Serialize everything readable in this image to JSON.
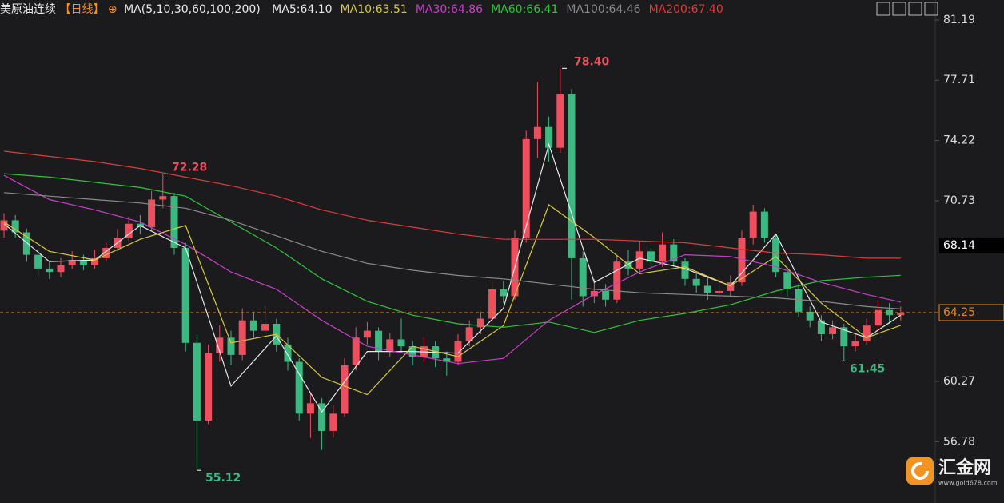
{
  "chart_data": {
    "type": "candlestick",
    "title": "美原油连续",
    "period": "【日线】",
    "indicator": "MA(5,10,30,60,100,200)",
    "ylim": [
      53.23,
      82.35
    ],
    "yticks": [
      {
        "value": 81.19,
        "label": "81.19"
      },
      {
        "value": 77.71,
        "label": "77.71"
      },
      {
        "value": 74.22,
        "label": "74.22"
      },
      {
        "value": 70.73,
        "label": "70.73"
      },
      {
        "value": 60.27,
        "label": "60.27"
      },
      {
        "value": 56.78,
        "label": "56.78"
      }
    ],
    "up_color": "#ee4f5e",
    "down_color": "#3cb981",
    "candles": [
      [
        69.0,
        70.0,
        68.6,
        69.6
      ],
      [
        69.6,
        69.9,
        68.6,
        68.9
      ],
      [
        68.9,
        69.1,
        67.2,
        67.6
      ],
      [
        67.6,
        68.0,
        66.3,
        66.8
      ],
      [
        66.8,
        67.2,
        66.2,
        66.6
      ],
      [
        66.6,
        67.4,
        66.3,
        67.0
      ],
      [
        67.0,
        67.8,
        66.8,
        67.3
      ],
      [
        67.3,
        67.6,
        66.7,
        67.0
      ],
      [
        67.0,
        67.9,
        66.8,
        67.4
      ],
      [
        67.4,
        68.3,
        67.2,
        68.0
      ],
      [
        68.0,
        69.1,
        67.8,
        68.6
      ],
      [
        68.6,
        69.8,
        68.3,
        69.4
      ],
      [
        69.4,
        69.9,
        68.8,
        69.2
      ],
      [
        69.2,
        71.3,
        69.0,
        70.8
      ],
      [
        70.8,
        72.28,
        70.3,
        71.0
      ],
      [
        71.0,
        71.2,
        67.6,
        68.0
      ],
      [
        68.0,
        68.3,
        62.0,
        62.5
      ],
      [
        62.5,
        63.0,
        55.12,
        58.0
      ],
      [
        58.0,
        62.4,
        57.8,
        61.9
      ],
      [
        61.9,
        63.5,
        61.4,
        62.8
      ],
      [
        62.8,
        63.2,
        61.2,
        61.8
      ],
      [
        61.8,
        64.5,
        61.5,
        63.8
      ],
      [
        63.8,
        64.3,
        62.8,
        63.2
      ],
      [
        63.2,
        64.6,
        62.9,
        63.6
      ],
      [
        63.6,
        63.9,
        62.0,
        62.4
      ],
      [
        62.4,
        62.8,
        60.9,
        61.4
      ],
      [
        61.4,
        61.6,
        58.0,
        58.4
      ],
      [
        58.4,
        59.6,
        57.0,
        59.0
      ],
      [
        59.0,
        59.3,
        56.3,
        57.4
      ],
      [
        57.4,
        58.9,
        57.0,
        58.4
      ],
      [
        58.4,
        61.6,
        58.2,
        61.2
      ],
      [
        61.2,
        63.4,
        60.9,
        62.8
      ],
      [
        62.8,
        63.7,
        62.4,
        63.2
      ],
      [
        63.2,
        63.4,
        61.5,
        62.0
      ],
      [
        62.0,
        63.1,
        61.7,
        62.7
      ],
      [
        62.7,
        63.9,
        61.9,
        62.3
      ],
      [
        62.3,
        62.6,
        61.2,
        61.7
      ],
      [
        61.7,
        62.8,
        61.4,
        62.3
      ],
      [
        62.3,
        62.6,
        61.1,
        61.6
      ],
      [
        61.6,
        62.0,
        60.6,
        61.4
      ],
      [
        61.4,
        63.0,
        61.2,
        62.6
      ],
      [
        62.6,
        63.8,
        62.3,
        63.4
      ],
      [
        63.4,
        64.3,
        63.0,
        63.9
      ],
      [
        63.9,
        66.0,
        63.6,
        65.6
      ],
      [
        65.6,
        66.1,
        64.8,
        65.2
      ],
      [
        65.2,
        69.0,
        65.0,
        68.6
      ],
      [
        68.6,
        74.8,
        68.3,
        74.3
      ],
      [
        74.3,
        77.6,
        73.2,
        75.0
      ],
      [
        75.0,
        75.6,
        73.0,
        73.8
      ],
      [
        73.8,
        78.4,
        73.5,
        76.9
      ],
      [
        76.9,
        77.2,
        65.0,
        67.4
      ],
      [
        67.4,
        67.8,
        64.6,
        65.2
      ],
      [
        65.2,
        66.2,
        64.8,
        65.5
      ],
      [
        65.5,
        65.9,
        64.6,
        65.0
      ],
      [
        65.0,
        67.6,
        64.8,
        67.2
      ],
      [
        67.2,
        67.9,
        66.4,
        66.8
      ],
      [
        66.8,
        68.4,
        66.5,
        67.8
      ],
      [
        67.8,
        68.0,
        66.8,
        67.2
      ],
      [
        67.2,
        68.9,
        66.9,
        68.2
      ],
      [
        68.2,
        68.5,
        66.9,
        67.2
      ],
      [
        67.2,
        67.4,
        65.8,
        66.2
      ],
      [
        66.2,
        66.6,
        65.4,
        65.8
      ],
      [
        65.8,
        66.3,
        65.0,
        65.4
      ],
      [
        65.4,
        66.2,
        65.0,
        65.5
      ],
      [
        65.5,
        66.4,
        65.2,
        66.0
      ],
      [
        66.0,
        69.0,
        65.8,
        68.6
      ],
      [
        68.6,
        70.5,
        68.2,
        70.1
      ],
      [
        70.1,
        70.3,
        68.3,
        68.6
      ],
      [
        68.6,
        68.8,
        66.3,
        66.6
      ],
      [
        66.6,
        66.9,
        65.2,
        65.6
      ],
      [
        65.6,
        65.9,
        64.0,
        64.3
      ],
      [
        64.3,
        64.6,
        63.4,
        63.8
      ],
      [
        63.8,
        64.1,
        62.6,
        63.0
      ],
      [
        63.0,
        63.8,
        62.7,
        63.4
      ],
      [
        63.4,
        63.6,
        61.45,
        62.3
      ],
      [
        62.3,
        63.0,
        62.0,
        62.6
      ],
      [
        62.6,
        63.9,
        62.4,
        63.5
      ],
      [
        63.5,
        65.0,
        63.2,
        64.4
      ],
      [
        64.4,
        64.8,
        63.6,
        64.1
      ],
      [
        64.1,
        64.6,
        63.8,
        64.25
      ]
    ],
    "ma_x": [
      0,
      4,
      8,
      12,
      16,
      20,
      24,
      28,
      32,
      36,
      40,
      44,
      48,
      52,
      56,
      60,
      64,
      68,
      72,
      76,
      79
    ],
    "series": [
      {
        "name": "MA5:64.10",
        "color": "#e8e8e8",
        "values": [
          69.4,
          67.2,
          67.3,
          69.3,
          68.0,
          60.0,
          62.9,
          58.5,
          62.0,
          62.0,
          61.9,
          64.5,
          74.0,
          66.0,
          67.4,
          66.8,
          65.8,
          68.8,
          63.7,
          62.8,
          64.1
        ]
      },
      {
        "name": "MA10:63.51",
        "color": "#d8c93a",
        "values": [
          69.5,
          67.8,
          67.3,
          68.5,
          69.3,
          62.5,
          63.0,
          60.5,
          59.5,
          62.3,
          61.7,
          63.5,
          70.5,
          68.6,
          66.5,
          66.9,
          65.8,
          67.5,
          64.8,
          62.8,
          63.51
        ]
      },
      {
        "name": "MA30:64.86",
        "color": "#c93fc9",
        "values": [
          72.2,
          70.8,
          70.2,
          69.5,
          68.2,
          66.6,
          65.6,
          63.8,
          62.3,
          61.8,
          61.3,
          61.6,
          63.8,
          65.3,
          66.6,
          67.6,
          67.5,
          66.9,
          66.0,
          65.3,
          64.86
        ]
      },
      {
        "name": "MA60:66.41",
        "color": "#2ec43a",
        "values": [
          72.3,
          72.1,
          71.8,
          71.5,
          71.0,
          69.5,
          68.0,
          66.2,
          64.9,
          64.1,
          63.6,
          63.4,
          63.7,
          63.1,
          63.8,
          64.2,
          64.7,
          65.5,
          66.1,
          66.3,
          66.41
        ]
      },
      {
        "name": "MA100:64.46",
        "color": "#8a8a8a",
        "values": [
          71.2,
          71.0,
          70.8,
          70.6,
          70.3,
          69.6,
          68.7,
          67.8,
          67.1,
          66.7,
          66.4,
          66.2,
          65.9,
          65.6,
          65.4,
          65.3,
          65.2,
          65.1,
          64.9,
          64.6,
          64.46
        ]
      },
      {
        "name": "MA200:67.40",
        "color": "#e03a3a",
        "values": [
          73.6,
          73.3,
          73.0,
          72.6,
          72.1,
          71.6,
          71.0,
          70.2,
          69.6,
          69.2,
          68.8,
          68.5,
          68.5,
          68.5,
          68.4,
          68.3,
          68.0,
          67.7,
          67.6,
          67.4,
          67.4
        ]
      }
    ],
    "marker_price": {
      "value": 68.14,
      "label": "68.14"
    },
    "last_price": {
      "value": 64.25,
      "label": "64.25"
    },
    "extreme_labels": [
      {
        "value": 78.4,
        "label": "78.40"
      },
      {
        "value": 72.28,
        "label": "72.28"
      },
      {
        "value": 55.12,
        "label": "55.12"
      },
      {
        "value": 61.45,
        "label": "61.45"
      }
    ],
    "logo": {
      "name": "汇金网",
      "url": "www.gold678.com"
    }
  }
}
